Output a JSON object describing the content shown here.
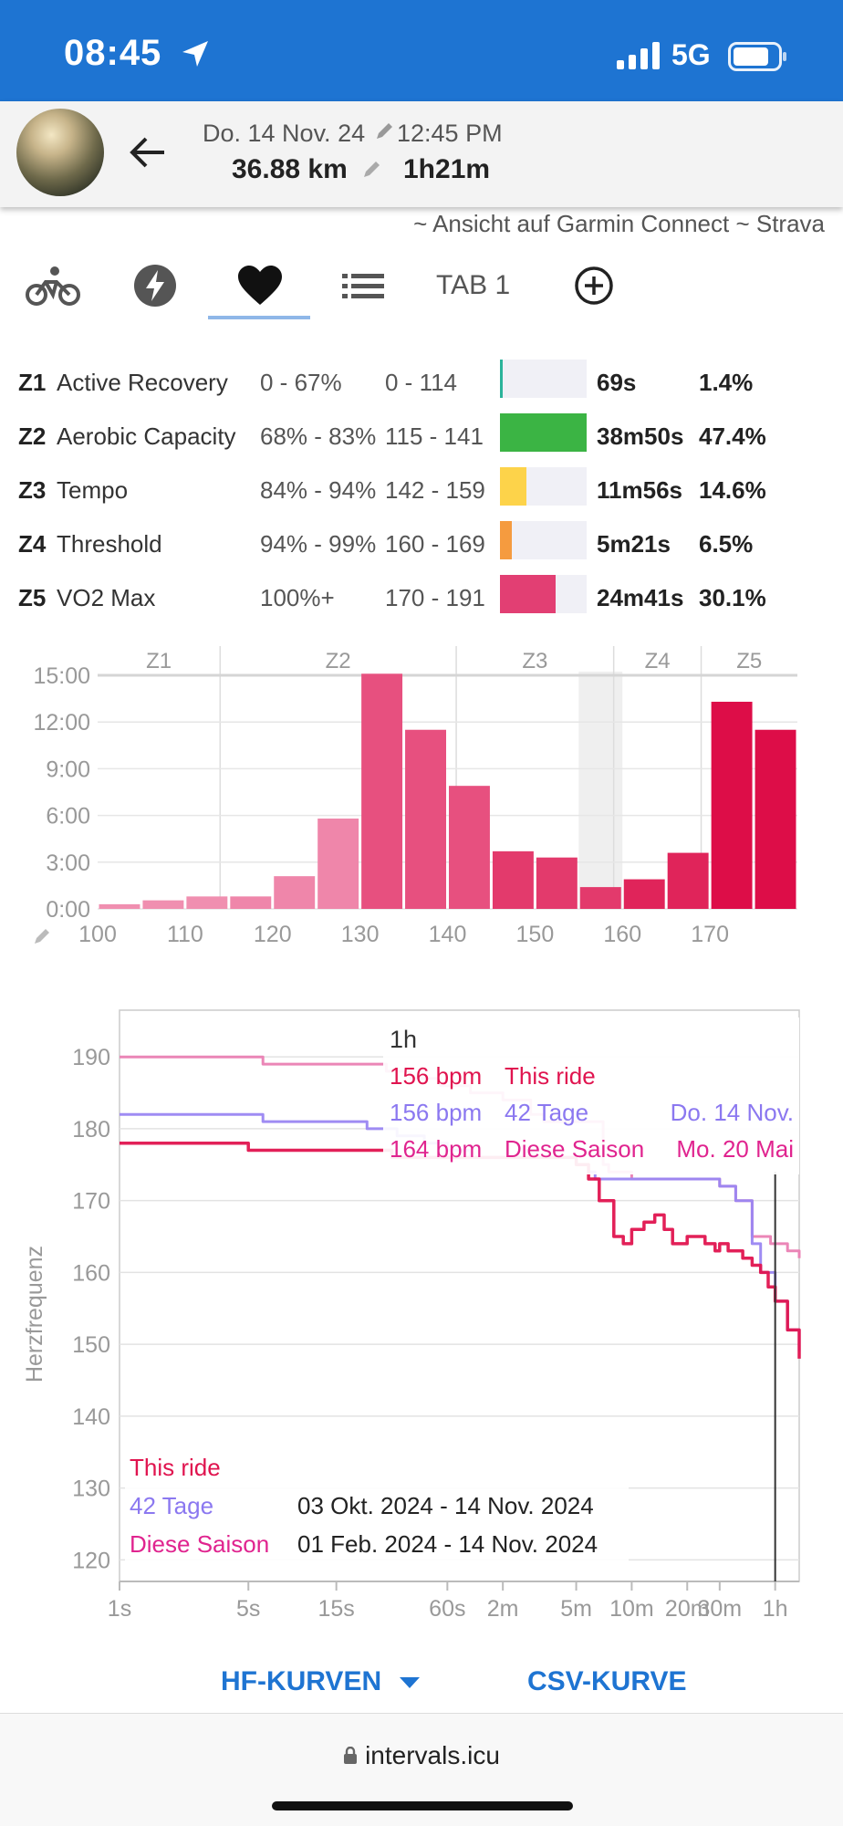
{
  "status": {
    "time": "08:45",
    "network": "5G"
  },
  "header": {
    "date": "Do. 14 Nov. 24",
    "time": "12:45 PM",
    "distance": "36.88 km",
    "duration": "1h21m",
    "links": "~ Ansicht auf Garmin Connect ~ Strava"
  },
  "tabs": [
    {
      "icon": "bike-icon"
    },
    {
      "icon": "power-icon"
    },
    {
      "icon": "heart-icon",
      "active": true
    },
    {
      "icon": "list-icon"
    },
    {
      "label": "TAB 1"
    },
    {
      "icon": "add-circle-icon"
    }
  ],
  "zones": [
    {
      "id": "Z1",
      "name": "Active Recovery",
      "pct": "0 - 67%",
      "bpm": "0 - 114",
      "time": "69s",
      "percent": "1.4%",
      "share": 0.014,
      "color": "#2bb39a"
    },
    {
      "id": "Z2",
      "name": "Aerobic Capacity",
      "pct": "68% - 83%",
      "bpm": "115 - 141",
      "time": "38m50s",
      "percent": "47.4%",
      "share": 1.0,
      "color": "#3bb444"
    },
    {
      "id": "Z3",
      "name": "Tempo",
      "pct": "84% - 94%",
      "bpm": "142 - 159",
      "time": "11m56s",
      "percent": "14.6%",
      "share": 0.31,
      "color": "#fdd34a"
    },
    {
      "id": "Z4",
      "name": "Threshold",
      "pct": "94% - 99%",
      "bpm": "160 - 169",
      "time": "5m21s",
      "percent": "6.5%",
      "share": 0.14,
      "color": "#f59b3f"
    },
    {
      "id": "Z5",
      "name": "VO2 Max",
      "pct": "100%+",
      "bpm": "170 - 191",
      "time": "24m41s",
      "percent": "30.1%",
      "share": 0.64,
      "color": "#e23f73"
    }
  ],
  "chart_data": [
    {
      "type": "bar",
      "title": "",
      "xlabel": "",
      "ylabel": "",
      "zones": [
        {
          "label": "Z1",
          "from": 100,
          "to": 114
        },
        {
          "label": "Z2",
          "from": 114,
          "to": 141
        },
        {
          "label": "Z3",
          "from": 141,
          "to": 159
        },
        {
          "label": "Z4",
          "from": 159,
          "to": 169
        },
        {
          "label": "Z5",
          "from": 169,
          "to": 180
        }
      ],
      "x_ticks": [
        100,
        110,
        120,
        130,
        140,
        150,
        160,
        170
      ],
      "y_ticks": [
        "15:00",
        "12:00",
        "9:00",
        "6:00",
        "3:00",
        "0:00"
      ],
      "ylim_minutes": [
        0,
        15
      ],
      "bins": [
        {
          "from": 100,
          "to": 105,
          "minutes": 0.3
        },
        {
          "from": 105,
          "to": 110,
          "minutes": 0.55
        },
        {
          "from": 110,
          "to": 115,
          "minutes": 0.8
        },
        {
          "from": 115,
          "to": 120,
          "minutes": 0.8
        },
        {
          "from": 120,
          "to": 125,
          "minutes": 2.1
        },
        {
          "from": 125,
          "to": 130,
          "minutes": 5.8
        },
        {
          "from": 130,
          "to": 135,
          "minutes": 15.1
        },
        {
          "from": 135,
          "to": 140,
          "minutes": 11.5
        },
        {
          "from": 140,
          "to": 145,
          "minutes": 7.9
        },
        {
          "from": 145,
          "to": 150,
          "minutes": 3.7
        },
        {
          "from": 150,
          "to": 155,
          "minutes": 3.3
        },
        {
          "from": 155,
          "to": 160,
          "minutes": 1.4
        },
        {
          "from": 160,
          "to": 165,
          "minutes": 1.9
        },
        {
          "from": 165,
          "to": 170,
          "minutes": 3.6
        },
        {
          "from": 170,
          "to": 175,
          "minutes": 13.3
        },
        {
          "from": 175,
          "to": 180,
          "minutes": 11.5
        }
      ]
    },
    {
      "type": "line",
      "ylabel": "Herzfrequenz",
      "xlabel": "",
      "ylim": [
        120,
        195
      ],
      "y_ticks": [
        190,
        180,
        170,
        160,
        150,
        140,
        130,
        120
      ],
      "x_tick_labels": [
        {
          "label": "1s",
          "sec": 1
        },
        {
          "label": "5s",
          "sec": 5
        },
        {
          "label": "15s",
          "sec": 15
        },
        {
          "label": "60s",
          "sec": 60
        },
        {
          "label": "2m",
          "sec": 120
        },
        {
          "label": "5m",
          "sec": 300
        },
        {
          "label": "10m",
          "sec": 600
        },
        {
          "label": "20m",
          "sec": 1200
        },
        {
          "label": "30m",
          "sec": 1800
        },
        {
          "label": "1h",
          "sec": 3600
        }
      ],
      "xlim_sec": [
        1,
        4860
      ],
      "cursor_sec": 3600,
      "tooltip": {
        "title": "1h",
        "rows": [
          {
            "bpm": "156 bpm",
            "name": "This ride",
            "date": "",
            "color": "#e0144f"
          },
          {
            "bpm": "156 bpm",
            "name": "42 Tage",
            "date": "Do. 14 Nov.",
            "color": "#8b78f0"
          },
          {
            "bpm": "164 bpm",
            "name": "Diese Saison",
            "date": "Mo. 20 Mai",
            "color": "#e0248f"
          }
        ]
      },
      "legend": [
        {
          "name": "This ride",
          "range": "",
          "color": "#e0144f"
        },
        {
          "name": "42 Tage",
          "range": "03 Okt. 2024  - 14 Nov. 2024",
          "color": "#8b78f0"
        },
        {
          "name": "Diese Saison",
          "range": "01 Feb. 2024  - 14 Nov. 2024",
          "color": "#e0248f"
        }
      ],
      "series": [
        {
          "name": "Diese Saison",
          "color": "#ea7fb3",
          "points": [
            [
              1,
              190
            ],
            [
              3,
              190
            ],
            [
              6,
              189
            ],
            [
              15,
              189
            ],
            [
              28,
              188
            ],
            [
              38,
              187
            ],
            [
              55,
              186
            ],
            [
              80,
              185
            ],
            [
              120,
              184
            ],
            [
              170,
              182
            ],
            [
              200,
              181
            ],
            [
              420,
              175
            ],
            [
              450,
              174
            ],
            [
              600,
              173
            ],
            [
              1000,
              173
            ],
            [
              1800,
              172
            ],
            [
              2200,
              170
            ],
            [
              2700,
              165
            ],
            [
              3400,
              164
            ],
            [
              4200,
              163
            ],
            [
              4860,
              162
            ]
          ]
        },
        {
          "name": "42 Tage",
          "color": "#9a86f2",
          "points": [
            [
              1,
              182
            ],
            [
              4,
              182
            ],
            [
              6,
              181
            ],
            [
              15,
              181
            ],
            [
              22,
              180
            ],
            [
              32,
              179
            ],
            [
              45,
              178
            ],
            [
              60,
              177
            ],
            [
              80,
              176
            ],
            [
              200,
              176
            ],
            [
              300,
              175
            ],
            [
              350,
              174
            ],
            [
              380,
              173
            ],
            [
              600,
              173
            ],
            [
              1000,
              173
            ],
            [
              1800,
              172
            ],
            [
              2200,
              170
            ],
            [
              2700,
              164
            ],
            [
              3000,
              160
            ],
            [
              3600,
              156
            ],
            [
              4200,
              152
            ],
            [
              4860,
              149
            ]
          ]
        },
        {
          "name": "This ride",
          "color": "#e0144f",
          "points": [
            [
              1,
              178
            ],
            [
              4,
              178
            ],
            [
              5,
              177
            ],
            [
              15,
              177
            ],
            [
              30,
              176
            ],
            [
              200,
              176
            ],
            [
              300,
              175
            ],
            [
              350,
              173
            ],
            [
              400,
              170
            ],
            [
              480,
              165
            ],
            [
              540,
              164
            ],
            [
              600,
              166
            ],
            [
              700,
              167
            ],
            [
              800,
              168
            ],
            [
              900,
              166
            ],
            [
              1000,
              164
            ],
            [
              1200,
              165
            ],
            [
              1500,
              164
            ],
            [
              1700,
              163
            ],
            [
              1800,
              164
            ],
            [
              2000,
              163
            ],
            [
              2400,
              162
            ],
            [
              2700,
              161
            ],
            [
              3000,
              160
            ],
            [
              3300,
              158
            ],
            [
              3600,
              156
            ],
            [
              4200,
              152
            ],
            [
              4860,
              148
            ]
          ]
        }
      ]
    }
  ],
  "footer": {
    "hf_curves": "HF-KURVEN",
    "csv_curve": "CSV-KURVE",
    "url": "intervals.icu"
  }
}
